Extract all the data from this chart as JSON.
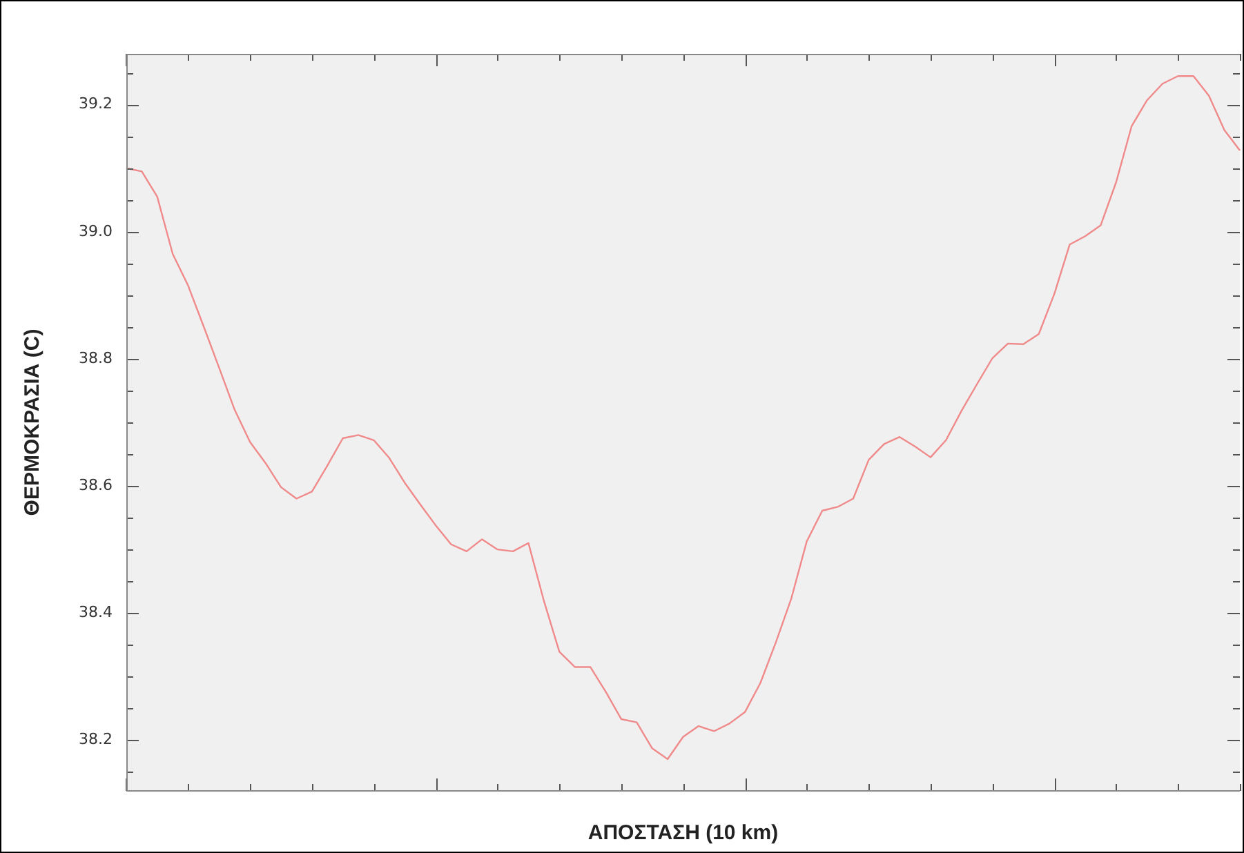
{
  "chart_data": {
    "type": "line",
    "xlabel": "ΑΠΟΣΤΑΣΗ (10 km)",
    "ylabel": "ΘΕΡΜΟΚΡΑΣΙΑ (C)",
    "categories": [
      null,
      null,
      null,
      null,
      null,
      null,
      null,
      null,
      null,
      null,
      null,
      null,
      null,
      null,
      null,
      null,
      null,
      null,
      null,
      null,
      null,
      null,
      null,
      null,
      null,
      null,
      null,
      null,
      null,
      null,
      null,
      null,
      null,
      null,
      null,
      null,
      null,
      null,
      null,
      null,
      null,
      null,
      null,
      null,
      null,
      null,
      null,
      null,
      null,
      null,
      null,
      null,
      null,
      null,
      null,
      null,
      null,
      null,
      null,
      null,
      null,
      null,
      null,
      null,
      null,
      null,
      null,
      null,
      null,
      null,
      null,
      null,
      null
    ],
    "series": [
      {
        "color": "#f08a8a",
        "values": [
          39.1,
          39.095,
          39.055,
          38.965,
          38.915,
          38.851,
          38.786,
          38.72,
          38.669,
          38.636,
          38.598,
          38.58,
          38.591,
          38.632,
          38.675,
          38.68,
          38.672,
          38.644,
          38.605,
          38.571,
          38.538,
          38.508,
          38.497,
          38.516,
          38.5,
          38.497,
          38.51,
          38.419,
          38.339,
          38.315,
          38.315,
          38.276,
          38.233,
          38.228,
          38.187,
          38.17,
          38.205,
          38.222,
          38.214,
          38.226,
          38.244,
          38.29,
          38.354,
          38.423,
          38.513,
          38.561,
          38.567,
          38.58,
          38.641,
          38.666,
          38.677,
          38.662,
          38.645,
          38.672,
          38.718,
          38.76,
          38.801,
          38.824,
          38.823,
          38.839,
          38.902,
          38.98,
          38.993,
          39.01,
          39.078,
          39.166,
          39.207,
          39.233,
          39.245,
          39.245,
          39.214,
          39.16,
          39.128
        ]
      }
    ],
    "ylim": [
      38.12,
      39.28
    ],
    "yticks": [
      {
        "value": 38.15,
        "label": null
      },
      {
        "value": 38.2,
        "label": "38.2"
      },
      {
        "value": 38.25,
        "label": null
      },
      {
        "value": 38.3,
        "label": null
      },
      {
        "value": 38.35,
        "label": null
      },
      {
        "value": 38.4,
        "label": "38.4"
      },
      {
        "value": 38.45,
        "label": null
      },
      {
        "value": 38.5,
        "label": null
      },
      {
        "value": 38.55,
        "label": null
      },
      {
        "value": 38.6,
        "label": "38.6"
      },
      {
        "value": 38.65,
        "label": null
      },
      {
        "value": 38.7,
        "label": null
      },
      {
        "value": 38.75,
        "label": null
      },
      {
        "value": 38.8,
        "label": "38.8"
      },
      {
        "value": 38.85,
        "label": null
      },
      {
        "value": 38.9,
        "label": null
      },
      {
        "value": 38.95,
        "label": null
      },
      {
        "value": 39,
        "label": "39.0"
      },
      {
        "value": 39.05,
        "label": null
      },
      {
        "value": 39.1,
        "label": null
      },
      {
        "value": 39.15,
        "label": null
      },
      {
        "value": 39.2,
        "label": "39.2"
      },
      {
        "value": 39.25,
        "label": null
      }
    ],
    "grid": false,
    "legend": false,
    "marker": "none",
    "line_style": "solid",
    "tick_labels": "y"
  }
}
